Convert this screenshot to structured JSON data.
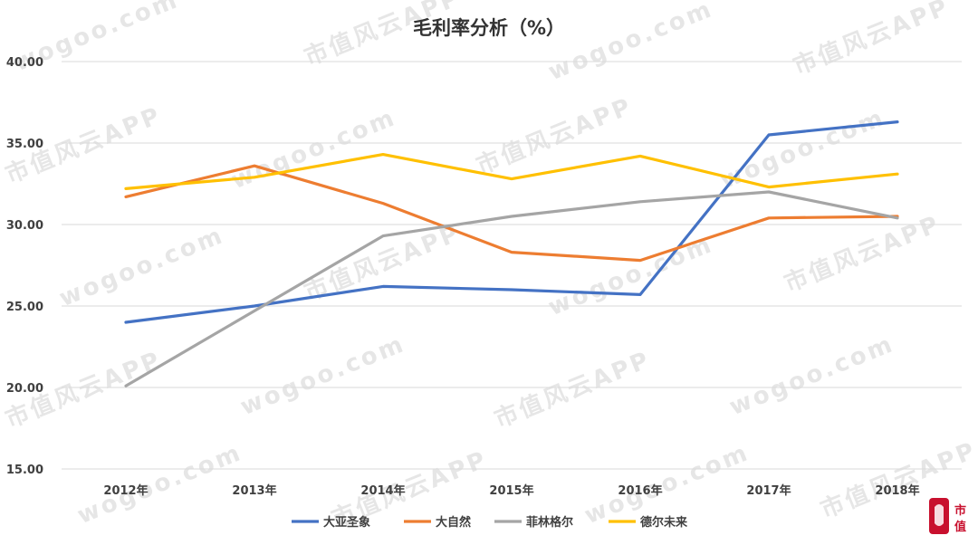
{
  "chart_data": {
    "type": "line",
    "title": "毛利率分析（%）",
    "categories": [
      "2012年",
      "2013年",
      "2014年",
      "2015年",
      "2016年",
      "2017年",
      "2018年"
    ],
    "ylim": [
      15,
      40
    ],
    "yticks": [
      "15.00",
      "20.00",
      "25.00",
      "30.00",
      "35.00",
      "40.00"
    ],
    "grid": true,
    "legend_position": "bottom",
    "series": [
      {
        "name": "大亚圣象",
        "color": "#4472C4",
        "values": [
          24.0,
          25.0,
          26.2,
          26.0,
          25.7,
          35.5,
          36.3
        ]
      },
      {
        "name": "大自然",
        "color": "#ED7D31",
        "values": [
          31.7,
          33.6,
          31.3,
          28.3,
          27.8,
          30.4,
          30.5
        ]
      },
      {
        "name": "菲林格尔",
        "color": "#A5A5A5",
        "values": [
          20.1,
          24.7,
          29.3,
          30.5,
          31.4,
          32.0,
          30.4
        ]
      },
      {
        "name": "德尔未来",
        "color": "#FFC000",
        "values": [
          32.2,
          32.9,
          34.3,
          32.8,
          34.2,
          32.3,
          33.1
        ]
      }
    ]
  },
  "watermark": {
    "text_cn": "市值风云APP",
    "text_url": "wogoo.com"
  },
  "badge": {
    "text": "市值",
    "icon": "brand-logo-icon"
  }
}
